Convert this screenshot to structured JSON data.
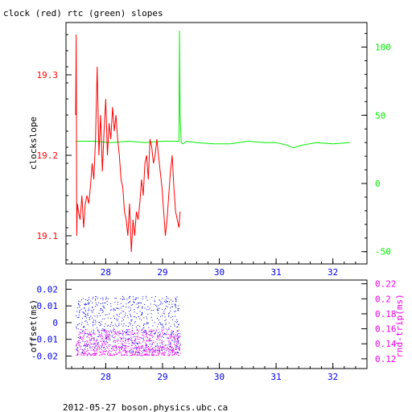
{
  "title": "clock (red) rtc (green) slopes",
  "footer": "2012-05-27  boson.physics.ubc.ca",
  "colors": {
    "clock": "#ff0000",
    "rtc": "#00ee00",
    "offset": "#0000ee",
    "rtt": "#ee00ee",
    "axis": "#000000"
  },
  "chart_data": [
    {
      "type": "line",
      "ylabel": "clockslope",
      "xlim": [
        27.3,
        32.6
      ],
      "ylim": [
        19.065,
        19.365
      ],
      "y2lim": [
        -59,
        118
      ],
      "x_ticks": [
        "28",
        "29",
        "30",
        "31",
        "32"
      ],
      "y_ticks": [
        "19.1",
        "19.2",
        "19.3"
      ],
      "y2_ticks": [
        "-50",
        "0",
        "50",
        "100"
      ],
      "series": [
        {
          "name": "clock",
          "axis": "left",
          "x": [
            27.47,
            27.48,
            27.49,
            27.5,
            27.52,
            27.55,
            27.58,
            27.61,
            27.64,
            27.67,
            27.7,
            27.73,
            27.76,
            27.79,
            27.82,
            27.85,
            27.88,
            27.91,
            27.94,
            27.97,
            28.0,
            28.03,
            28.06,
            28.09,
            28.12,
            28.15,
            28.18,
            28.21,
            28.24,
            28.27,
            28.3,
            28.33,
            28.36,
            28.39,
            28.42,
            28.45,
            28.48,
            28.51,
            28.54,
            28.57,
            28.6,
            28.63,
            28.66,
            28.69,
            28.72,
            28.75,
            28.78,
            28.81,
            28.84,
            28.87,
            28.9,
            28.93,
            28.96,
            28.99,
            29.02,
            29.05,
            29.08,
            29.11,
            29.14,
            29.17,
            29.2,
            29.23,
            29.26,
            29.29,
            29.31
          ],
          "y": [
            19.25,
            19.35,
            19.1,
            19.14,
            19.13,
            19.12,
            19.15,
            19.11,
            19.14,
            19.15,
            19.14,
            19.16,
            19.19,
            19.17,
            19.22,
            19.31,
            19.2,
            19.25,
            19.18,
            19.23,
            19.27,
            19.2,
            19.24,
            19.22,
            19.26,
            19.23,
            19.25,
            19.22,
            19.2,
            19.17,
            19.16,
            19.13,
            19.12,
            19.1,
            19.14,
            19.08,
            19.12,
            19.1,
            19.13,
            19.12,
            19.14,
            19.17,
            19.15,
            19.19,
            19.2,
            19.17,
            19.22,
            19.21,
            19.19,
            19.2,
            19.22,
            19.2,
            19.18,
            19.16,
            19.13,
            19.1,
            19.12,
            19.15,
            19.18,
            19.2,
            19.16,
            19.13,
            19.12,
            19.11,
            19.13
          ]
        },
        {
          "name": "rtc",
          "axis": "right",
          "x": [
            27.47,
            27.8,
            28.1,
            28.4,
            28.7,
            29.0,
            29.25,
            29.29,
            29.3,
            29.31,
            29.33,
            29.36,
            29.42,
            29.6,
            29.9,
            30.2,
            30.5,
            30.8,
            31.0,
            31.2,
            31.3,
            31.45,
            31.7,
            32.0,
            32.3
          ],
          "y": [
            31,
            31,
            30,
            31,
            30,
            31,
            31,
            31,
            112,
            50,
            30,
            29,
            31,
            30,
            29,
            29,
            31,
            30,
            30,
            28,
            26,
            28,
            30,
            29,
            30
          ]
        }
      ]
    },
    {
      "type": "scatter",
      "ylabel": "offset(ms)",
      "y2label": "rnd-trip(ms)",
      "xlim": [
        27.3,
        32.6
      ],
      "ylim": [
        -0.0275,
        0.0255
      ],
      "y2lim": [
        0.107,
        0.225
      ],
      "x_ticks": [
        "28",
        "29",
        "30",
        "31",
        "32"
      ],
      "y_ticks": [
        "0.02",
        "0.01",
        "0",
        "-0.01",
        "-0.02"
      ],
      "y2_ticks": [
        "0.22",
        "0.2",
        "0.18",
        "0.16",
        "0.14",
        "0.12"
      ],
      "series": [
        {
          "name": "offset",
          "axis": "left",
          "x_range": [
            27.47,
            29.31
          ],
          "y_range": [
            -0.018,
            0.016
          ]
        },
        {
          "name": "rnd-trip",
          "axis": "right",
          "x_range": [
            27.47,
            29.31
          ],
          "y_range": [
            0.125,
            0.16
          ]
        }
      ]
    }
  ]
}
